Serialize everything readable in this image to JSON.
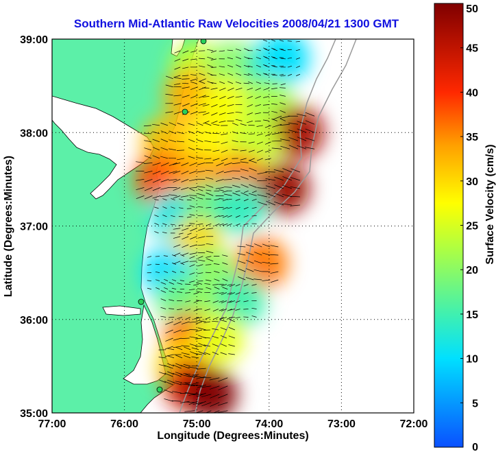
{
  "chart_data": {
    "type": "heatmap",
    "title": "Southern Mid-Atlantic Raw Velocities 2008/04/21 1300 GMT",
    "xlabel": "Longitude (Degrees:Minutes)",
    "ylabel": "Latitude (Degrees:Minutes)",
    "x_ticks": [
      "77:00",
      "76:00",
      "75:00",
      "74:00",
      "73:00",
      "72:00"
    ],
    "y_ticks": [
      "39:00",
      "38:00",
      "37:00",
      "36:00",
      "35:00"
    ],
    "xlim": [
      -77,
      -72
    ],
    "ylim": [
      35,
      39
    ],
    "grid": true,
    "colorbar": {
      "label": "Surface Velocity (cm/s)",
      "ticks": [
        "50",
        "45",
        "40",
        "35",
        "30",
        "25",
        "20",
        "15",
        "10",
        "5",
        "0"
      ],
      "range": [
        0,
        50
      ]
    },
    "colors": {
      "land": "#5cf0a8",
      "title": "#1010e0",
      "coast": "#000000",
      "bathymetry": "#9a9a9a"
    },
    "velocity_field": [
      {
        "lon": -75.0,
        "lat": 38.7,
        "speed": 24
      },
      {
        "lon": -74.5,
        "lat": 38.7,
        "speed": 20
      },
      {
        "lon": -74.0,
        "lat": 38.7,
        "speed": 15
      },
      {
        "lon": -73.8,
        "lat": 38.8,
        "speed": 10
      },
      {
        "lon": -75.1,
        "lat": 38.4,
        "speed": 33
      },
      {
        "lon": -74.6,
        "lat": 38.3,
        "speed": 27
      },
      {
        "lon": -74.0,
        "lat": 38.3,
        "speed": 22
      },
      {
        "lon": -73.6,
        "lat": 38.0,
        "speed": 47
      },
      {
        "lon": -75.4,
        "lat": 37.9,
        "speed": 32
      },
      {
        "lon": -74.8,
        "lat": 37.9,
        "speed": 28
      },
      {
        "lon": -74.2,
        "lat": 37.9,
        "speed": 24
      },
      {
        "lon": -75.5,
        "lat": 37.5,
        "speed": 38
      },
      {
        "lon": -75.0,
        "lat": 37.5,
        "speed": 34
      },
      {
        "lon": -74.4,
        "lat": 37.5,
        "speed": 36
      },
      {
        "lon": -73.8,
        "lat": 37.4,
        "speed": 48
      },
      {
        "lon": -75.3,
        "lat": 37.1,
        "speed": 12
      },
      {
        "lon": -74.8,
        "lat": 37.2,
        "speed": 18
      },
      {
        "lon": -74.4,
        "lat": 37.2,
        "speed": 14
      },
      {
        "lon": -75.0,
        "lat": 36.8,
        "speed": 30
      },
      {
        "lon": -74.8,
        "lat": 36.5,
        "speed": 20
      },
      {
        "lon": -75.4,
        "lat": 36.5,
        "speed": 10
      },
      {
        "lon": -74.1,
        "lat": 36.6,
        "speed": 36
      },
      {
        "lon": -75.2,
        "lat": 36.2,
        "speed": 18
      },
      {
        "lon": -74.7,
        "lat": 36.2,
        "speed": 21
      },
      {
        "lon": -74.4,
        "lat": 36.2,
        "speed": 15
      },
      {
        "lon": -75.1,
        "lat": 35.8,
        "speed": 37
      },
      {
        "lon": -74.7,
        "lat": 35.8,
        "speed": 26
      },
      {
        "lon": -75.2,
        "lat": 35.5,
        "speed": 30
      },
      {
        "lon": -75.1,
        "lat": 35.3,
        "speed": 44
      },
      {
        "lon": -74.8,
        "lat": 35.2,
        "speed": 50
      }
    ]
  }
}
